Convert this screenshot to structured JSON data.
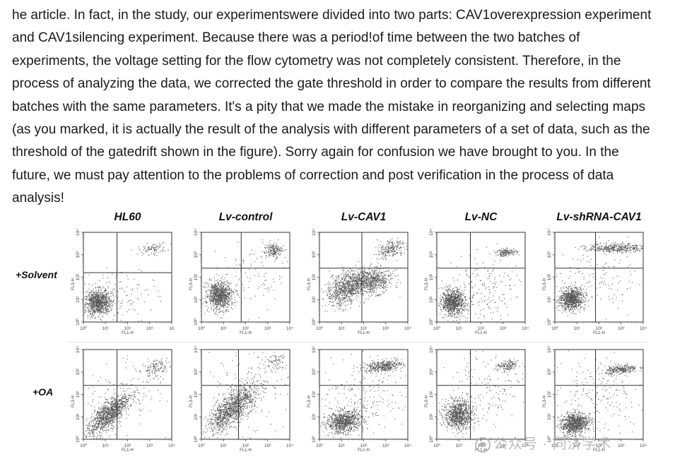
{
  "paragraph_lines": [
    "he article. In fact, in the study, our experimentswere divided into two parts: CAV1overexpression experiment",
    "and CAV1silencing experiment. Because there was a period!of time between the two batches of",
    "experiments, the voltage setting for the flow cytometry was not completely consistent. Therefore, in the",
    "process of analyzing the data, we corrected the gate threshold in order to compare the results from different",
    "batches with the same parameters. It's a pity that we made the mistake in reorganizing and selecting maps",
    "(as you marked, it is actually the result of the analysis with different parameters of a set of data, such as the",
    "threshold of the gatedrift shown in the figure). Sorry again for confusion we have brought to you. In the",
    "future, we must pay attention to the problems of correction and post verification in the process of data",
    "analysis!"
  ],
  "figure": {
    "columns": [
      "HL60",
      "Lv-control",
      "Lv-CAV1",
      "Lv-NC",
      "Lv-shRNA-CAV1"
    ],
    "rows": [
      "+Solvent",
      "+OA"
    ],
    "x_axis_title": "FL1-H",
    "y_axis_title": "FL3-H",
    "x_ticks": [
      "10⁰",
      "10¹",
      "10²",
      "10³",
      "10⁴"
    ],
    "y_ticks": [
      "10⁰",
      "10¹",
      "10²",
      "10³",
      "10⁴"
    ],
    "first_plot_last_x_tick": "10",
    "dot_color": "#555555",
    "quadrant_line_color": "#333333"
  },
  "watermark": {
    "text": "公众号 · 同济学术"
  }
}
